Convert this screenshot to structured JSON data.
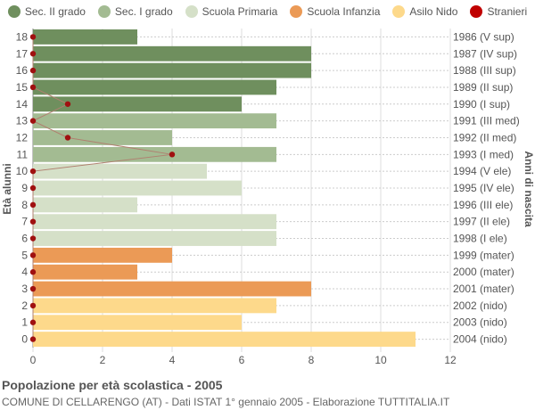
{
  "chart_data": {
    "type": "bar",
    "orientation": "horizontal",
    "title": "Popolazione per età scolastica - 2005",
    "subtitle": "COMUNE DI CELLARENGO (AT) - Dati ISTAT 1° gennaio 2005 - Elaborazione TUTTITALIA.IT",
    "ylabel_left": "Età alunni",
    "ylabel_right": "Anni di nascita",
    "xlim": [
      0,
      12
    ],
    "xticks": [
      0,
      2,
      4,
      6,
      8,
      10,
      12
    ],
    "grid": true,
    "legend_position": "top",
    "legend": [
      {
        "name": "Sec. II grado",
        "color": "#6f8f5e"
      },
      {
        "name": "Sec. I grado",
        "color": "#a3bb92"
      },
      {
        "name": "Scuola Primaria",
        "color": "#d5e0c8"
      },
      {
        "name": "Scuola Infanzia",
        "color": "#eb9a56"
      },
      {
        "name": "Asilo Nido",
        "color": "#fdd98b"
      },
      {
        "name": "Stranieri",
        "color": "#c00000"
      }
    ],
    "rows": [
      {
        "age": "18",
        "birth": "1986 (V sup)",
        "value": 3,
        "group": 0,
        "stranieri": 0
      },
      {
        "age": "17",
        "birth": "1987 (IV sup)",
        "value": 8,
        "group": 0,
        "stranieri": 0
      },
      {
        "age": "16",
        "birth": "1988 (III sup)",
        "value": 8,
        "group": 0,
        "stranieri": 0
      },
      {
        "age": "15",
        "birth": "1989 (II sup)",
        "value": 7,
        "group": 0,
        "stranieri": 0
      },
      {
        "age": "14",
        "birth": "1990 (I sup)",
        "value": 6,
        "group": 0,
        "stranieri": 1
      },
      {
        "age": "13",
        "birth": "1991 (III med)",
        "value": 7,
        "group": 1,
        "stranieri": 0
      },
      {
        "age": "12",
        "birth": "1992 (II med)",
        "value": 4,
        "group": 1,
        "stranieri": 1
      },
      {
        "age": "11",
        "birth": "1993 (I med)",
        "value": 7,
        "group": 1,
        "stranieri": 4
      },
      {
        "age": "10",
        "birth": "1994 (V ele)",
        "value": 5,
        "group": 2,
        "stranieri": 0
      },
      {
        "age": "9",
        "birth": "1995 (IV ele)",
        "value": 6,
        "group": 2,
        "stranieri": 0
      },
      {
        "age": "8",
        "birth": "1996 (III ele)",
        "value": 3,
        "group": 2,
        "stranieri": 0
      },
      {
        "age": "7",
        "birth": "1997 (II ele)",
        "value": 7,
        "group": 2,
        "stranieri": 0
      },
      {
        "age": "6",
        "birth": "1998 (I ele)",
        "value": 7,
        "group": 2,
        "stranieri": 0
      },
      {
        "age": "5",
        "birth": "1999 (mater)",
        "value": 4,
        "group": 3,
        "stranieri": 0
      },
      {
        "age": "4",
        "birth": "2000 (mater)",
        "value": 3,
        "group": 3,
        "stranieri": 0
      },
      {
        "age": "3",
        "birth": "2001 (mater)",
        "value": 8,
        "group": 3,
        "stranieri": 0
      },
      {
        "age": "2",
        "birth": "2002 (nido)",
        "value": 7,
        "group": 4,
        "stranieri": 0
      },
      {
        "age": "1",
        "birth": "2003 (nido)",
        "value": 6,
        "group": 4,
        "stranieri": 0
      },
      {
        "age": "0",
        "birth": "2004 (nido)",
        "value": 11,
        "group": 4,
        "stranieri": 0
      }
    ]
  }
}
